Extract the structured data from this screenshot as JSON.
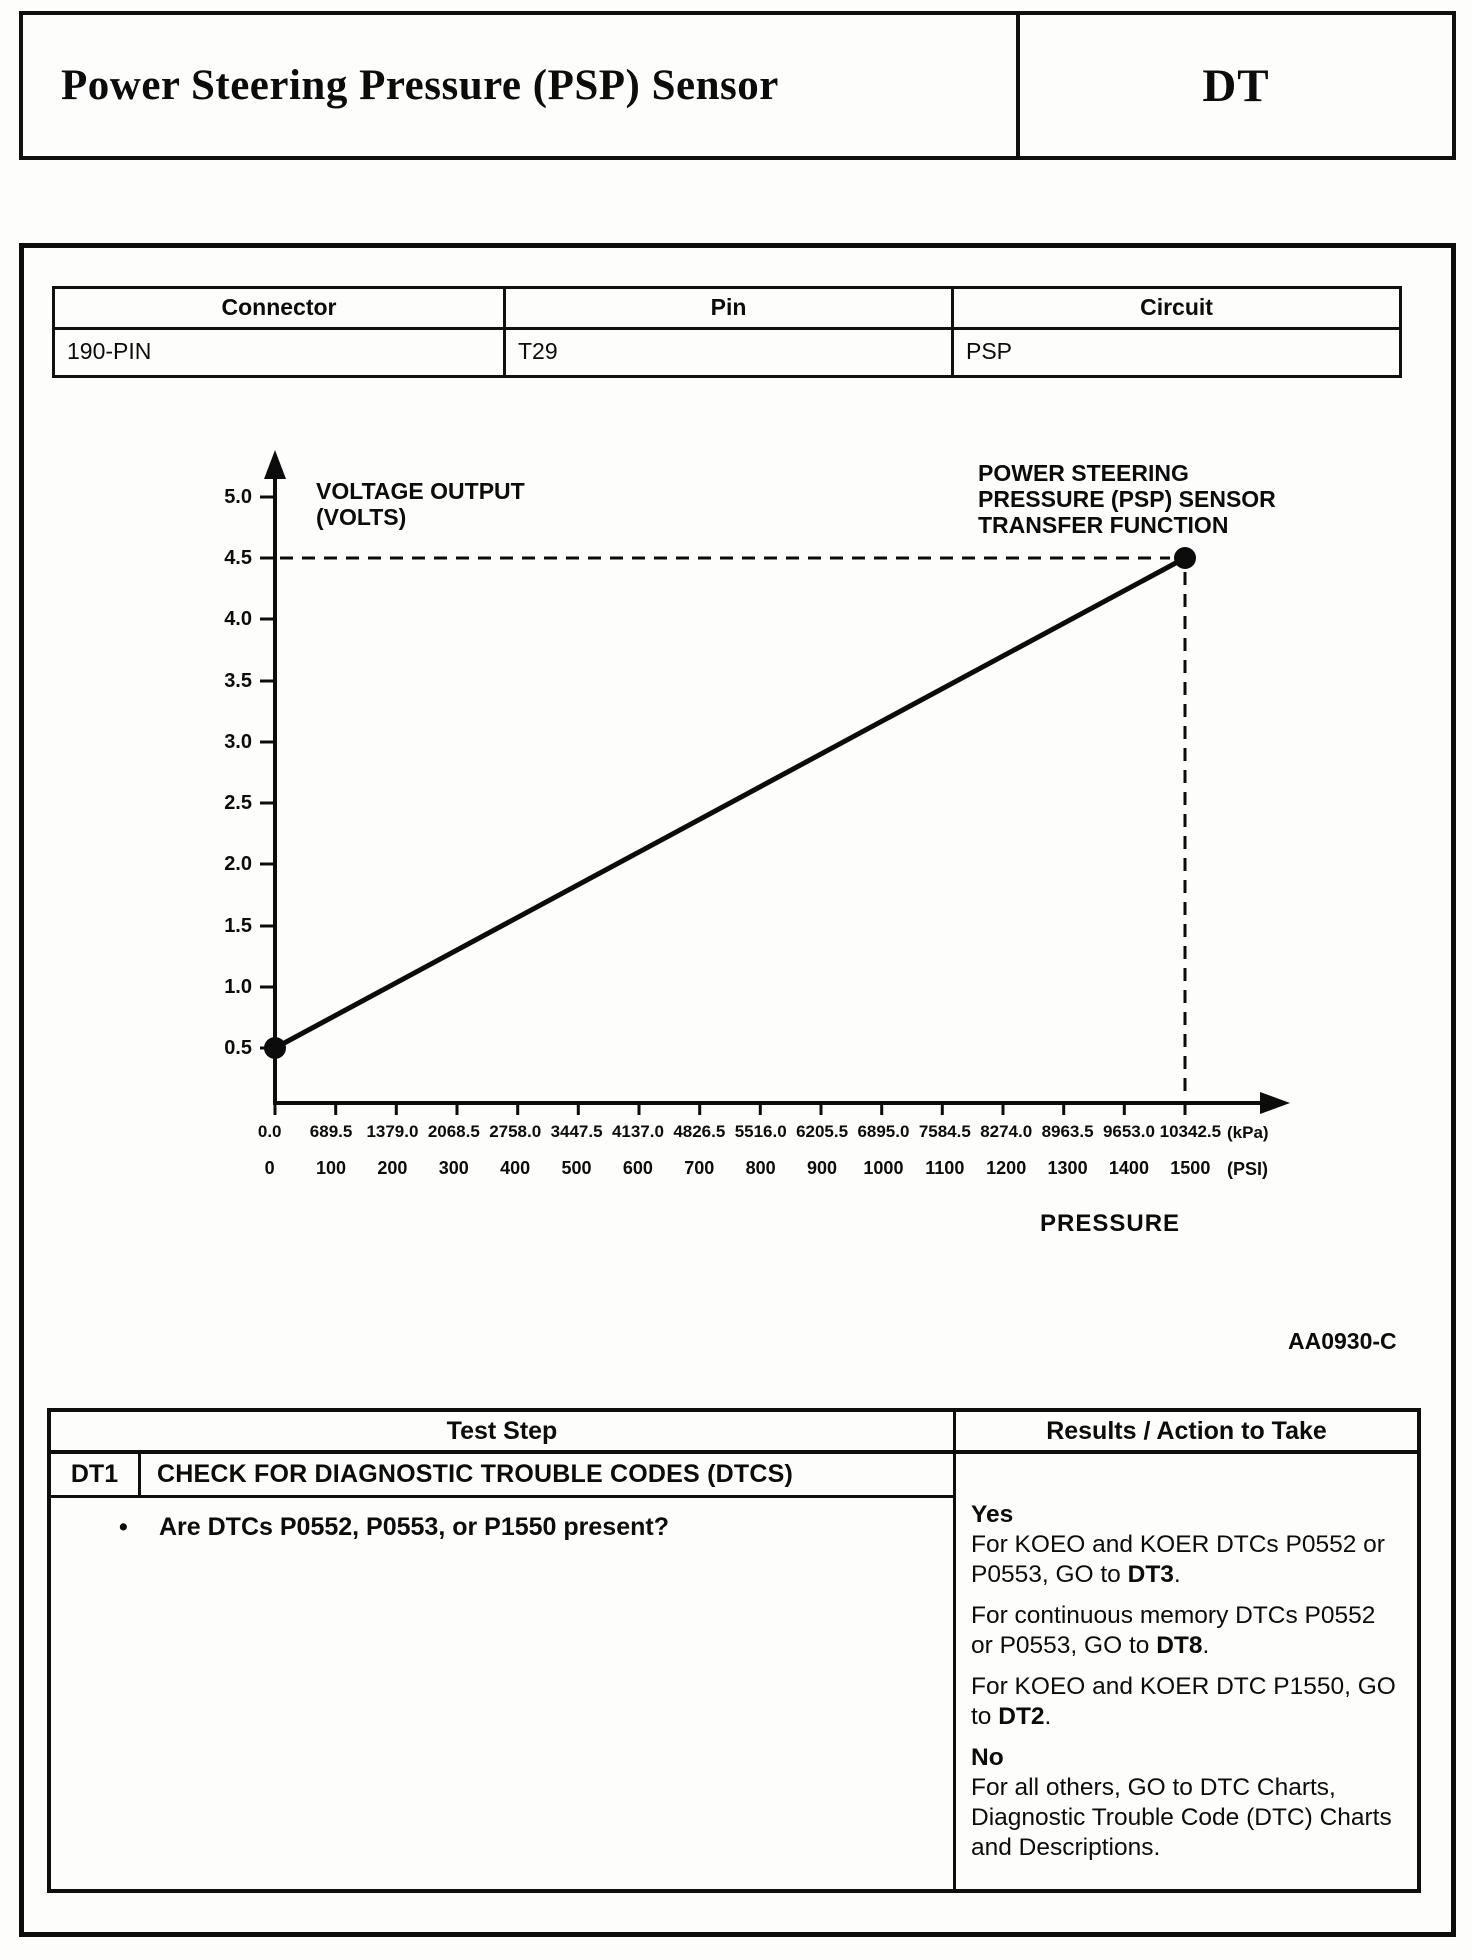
{
  "header": {
    "title": "Power Steering Pressure (PSP) Sensor",
    "section": "DT"
  },
  "connector_table": {
    "headers": [
      "Connector",
      "Pin",
      "Circuit"
    ],
    "rows": [
      [
        "190-PIN",
        "T29",
        "PSP"
      ]
    ]
  },
  "chart_data": {
    "type": "line",
    "title": "POWER STEERING PRESSURE (PSP) SENSOR TRANSFER FUNCTION",
    "title_lines": [
      "POWER STEERING",
      "PRESSURE (PSP) SENSOR",
      "TRANSFER FUNCTION"
    ],
    "ylabel_lines": [
      "VOLTAGE OUTPUT",
      "(VOLTS)"
    ],
    "xlabel": "PRESSURE",
    "y_ticks": [
      "5.0",
      "4.5",
      "4.0",
      "3.5",
      "3.0",
      "2.5",
      "2.0",
      "1.5",
      "1.0",
      "0.5"
    ],
    "x_ticks_kpa": [
      "0.0",
      "689.5",
      "1379.0",
      "2068.5",
      "2758.0",
      "3447.5",
      "4137.0",
      "4826.5",
      "5516.0",
      "6205.5",
      "6895.0",
      "7584.5",
      "8274.0",
      "8963.5",
      "9653.0",
      "10342.5"
    ],
    "kpa_unit": "(kPa)",
    "x_ticks_psi": [
      "0",
      "100",
      "200",
      "300",
      "400",
      "500",
      "600",
      "700",
      "800",
      "900",
      "1000",
      "1100",
      "1200",
      "1300",
      "1400",
      "1500"
    ],
    "psi_unit": "(PSI)",
    "series": [
      {
        "name": "PSP sensor transfer function",
        "x_kpa": [
          0,
          10342.5
        ],
        "x_psi": [
          0,
          1500
        ],
        "y_volts": [
          0.5,
          4.5
        ]
      }
    ],
    "ylim": [
      0,
      5.0
    ],
    "xlim_kpa": [
      0,
      10342.5
    ],
    "dashed_reference": {
      "x_kpa": 10342.5,
      "y_volts": 4.5
    },
    "grid": false,
    "legend": false
  },
  "figure_id": "AA0930-C",
  "test_table": {
    "headers": {
      "test_step": "Test Step",
      "results": "Results / Action to Take"
    },
    "step_id": "DT1",
    "step_title": "CHECK FOR DIAGNOSTIC TROUBLE CODES (DTCS)",
    "bullet_glyph": "•",
    "bullet": "Are DTCs P0552, P0553, or P1550 present?",
    "results": {
      "yes_label": "Yes",
      "yes_items": [
        {
          "lead": "For KOEO and KOER DTCs P0552 or P0553, GO to ",
          "strong": "DT3",
          "tail": "."
        },
        {
          "lead": "For continuous memory DTCs P0552 or P0553, GO to ",
          "strong": "DT8",
          "tail": "."
        },
        {
          "lead": "For KOEO and KOER DTC P1550, GO to ",
          "strong": "DT2",
          "tail": "."
        }
      ],
      "no_label": "No",
      "no_items": [
        {
          "lead": "For all others, GO to DTC Charts, Diagnostic Trouble Code (DTC) Charts and Descriptions.",
          "strong": "",
          "tail": ""
        }
      ]
    }
  }
}
